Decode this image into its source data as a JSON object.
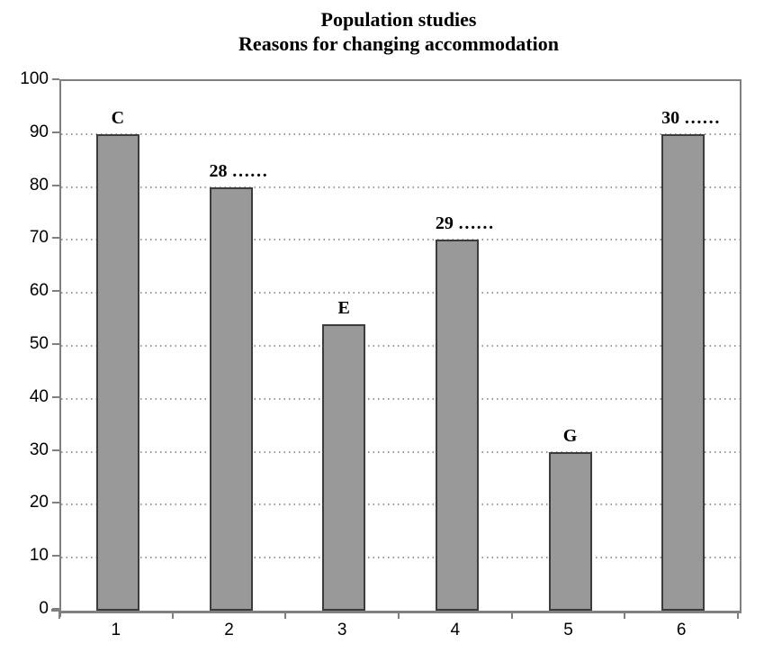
{
  "chart_data": {
    "type": "bar",
    "title": "Population studies",
    "subtitle": "Reasons for changing accommodation",
    "categories": [
      "1",
      "2",
      "3",
      "4",
      "5",
      "6"
    ],
    "values": [
      90,
      80,
      54,
      70,
      30,
      90
    ],
    "bar_labels": [
      "C",
      "28 ……",
      "E",
      "29 ……",
      "G",
      "30 ……"
    ],
    "ylim": [
      0,
      100
    ],
    "ytick_step": 10,
    "yticks": [
      0,
      10,
      20,
      30,
      40,
      50,
      60,
      70,
      80,
      90,
      100
    ],
    "grid": "dotted horizontal gridlines",
    "legend": "none",
    "bar_color": "#999999",
    "bar_border_color": "#3c3c3c",
    "axis_color": "#808080",
    "grid_color": "#9a9a9a",
    "text_color": "#000000"
  }
}
